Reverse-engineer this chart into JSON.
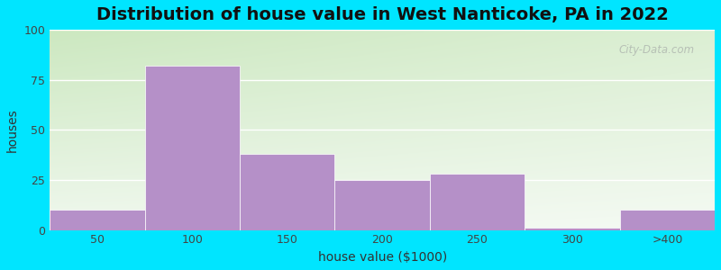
{
  "title": "Distribution of house value in West Nanticoke, PA in 2022",
  "xlabel": "house value ($1000)",
  "ylabel": "houses",
  "bar_labels": [
    "50",
    "100",
    "150",
    "200",
    "250",
    "300",
    ">400"
  ],
  "bar_heights": [
    10,
    82,
    38,
    25,
    28,
    1,
    10
  ],
  "bar_color": "#b590c8",
  "yticks": [
    0,
    25,
    50,
    75,
    100
  ],
  "ylim": [
    0,
    100
  ],
  "bg_outer": "#00e5ff",
  "bg_top_left": "#cce8c0",
  "bg_bottom_right": "#f0f8ee",
  "bg_top_right": "#e8f5e0",
  "title_fontsize": 14,
  "axis_label_fontsize": 10,
  "tick_fontsize": 9,
  "watermark_text": "City-Data.com",
  "bar_width": 1.0
}
